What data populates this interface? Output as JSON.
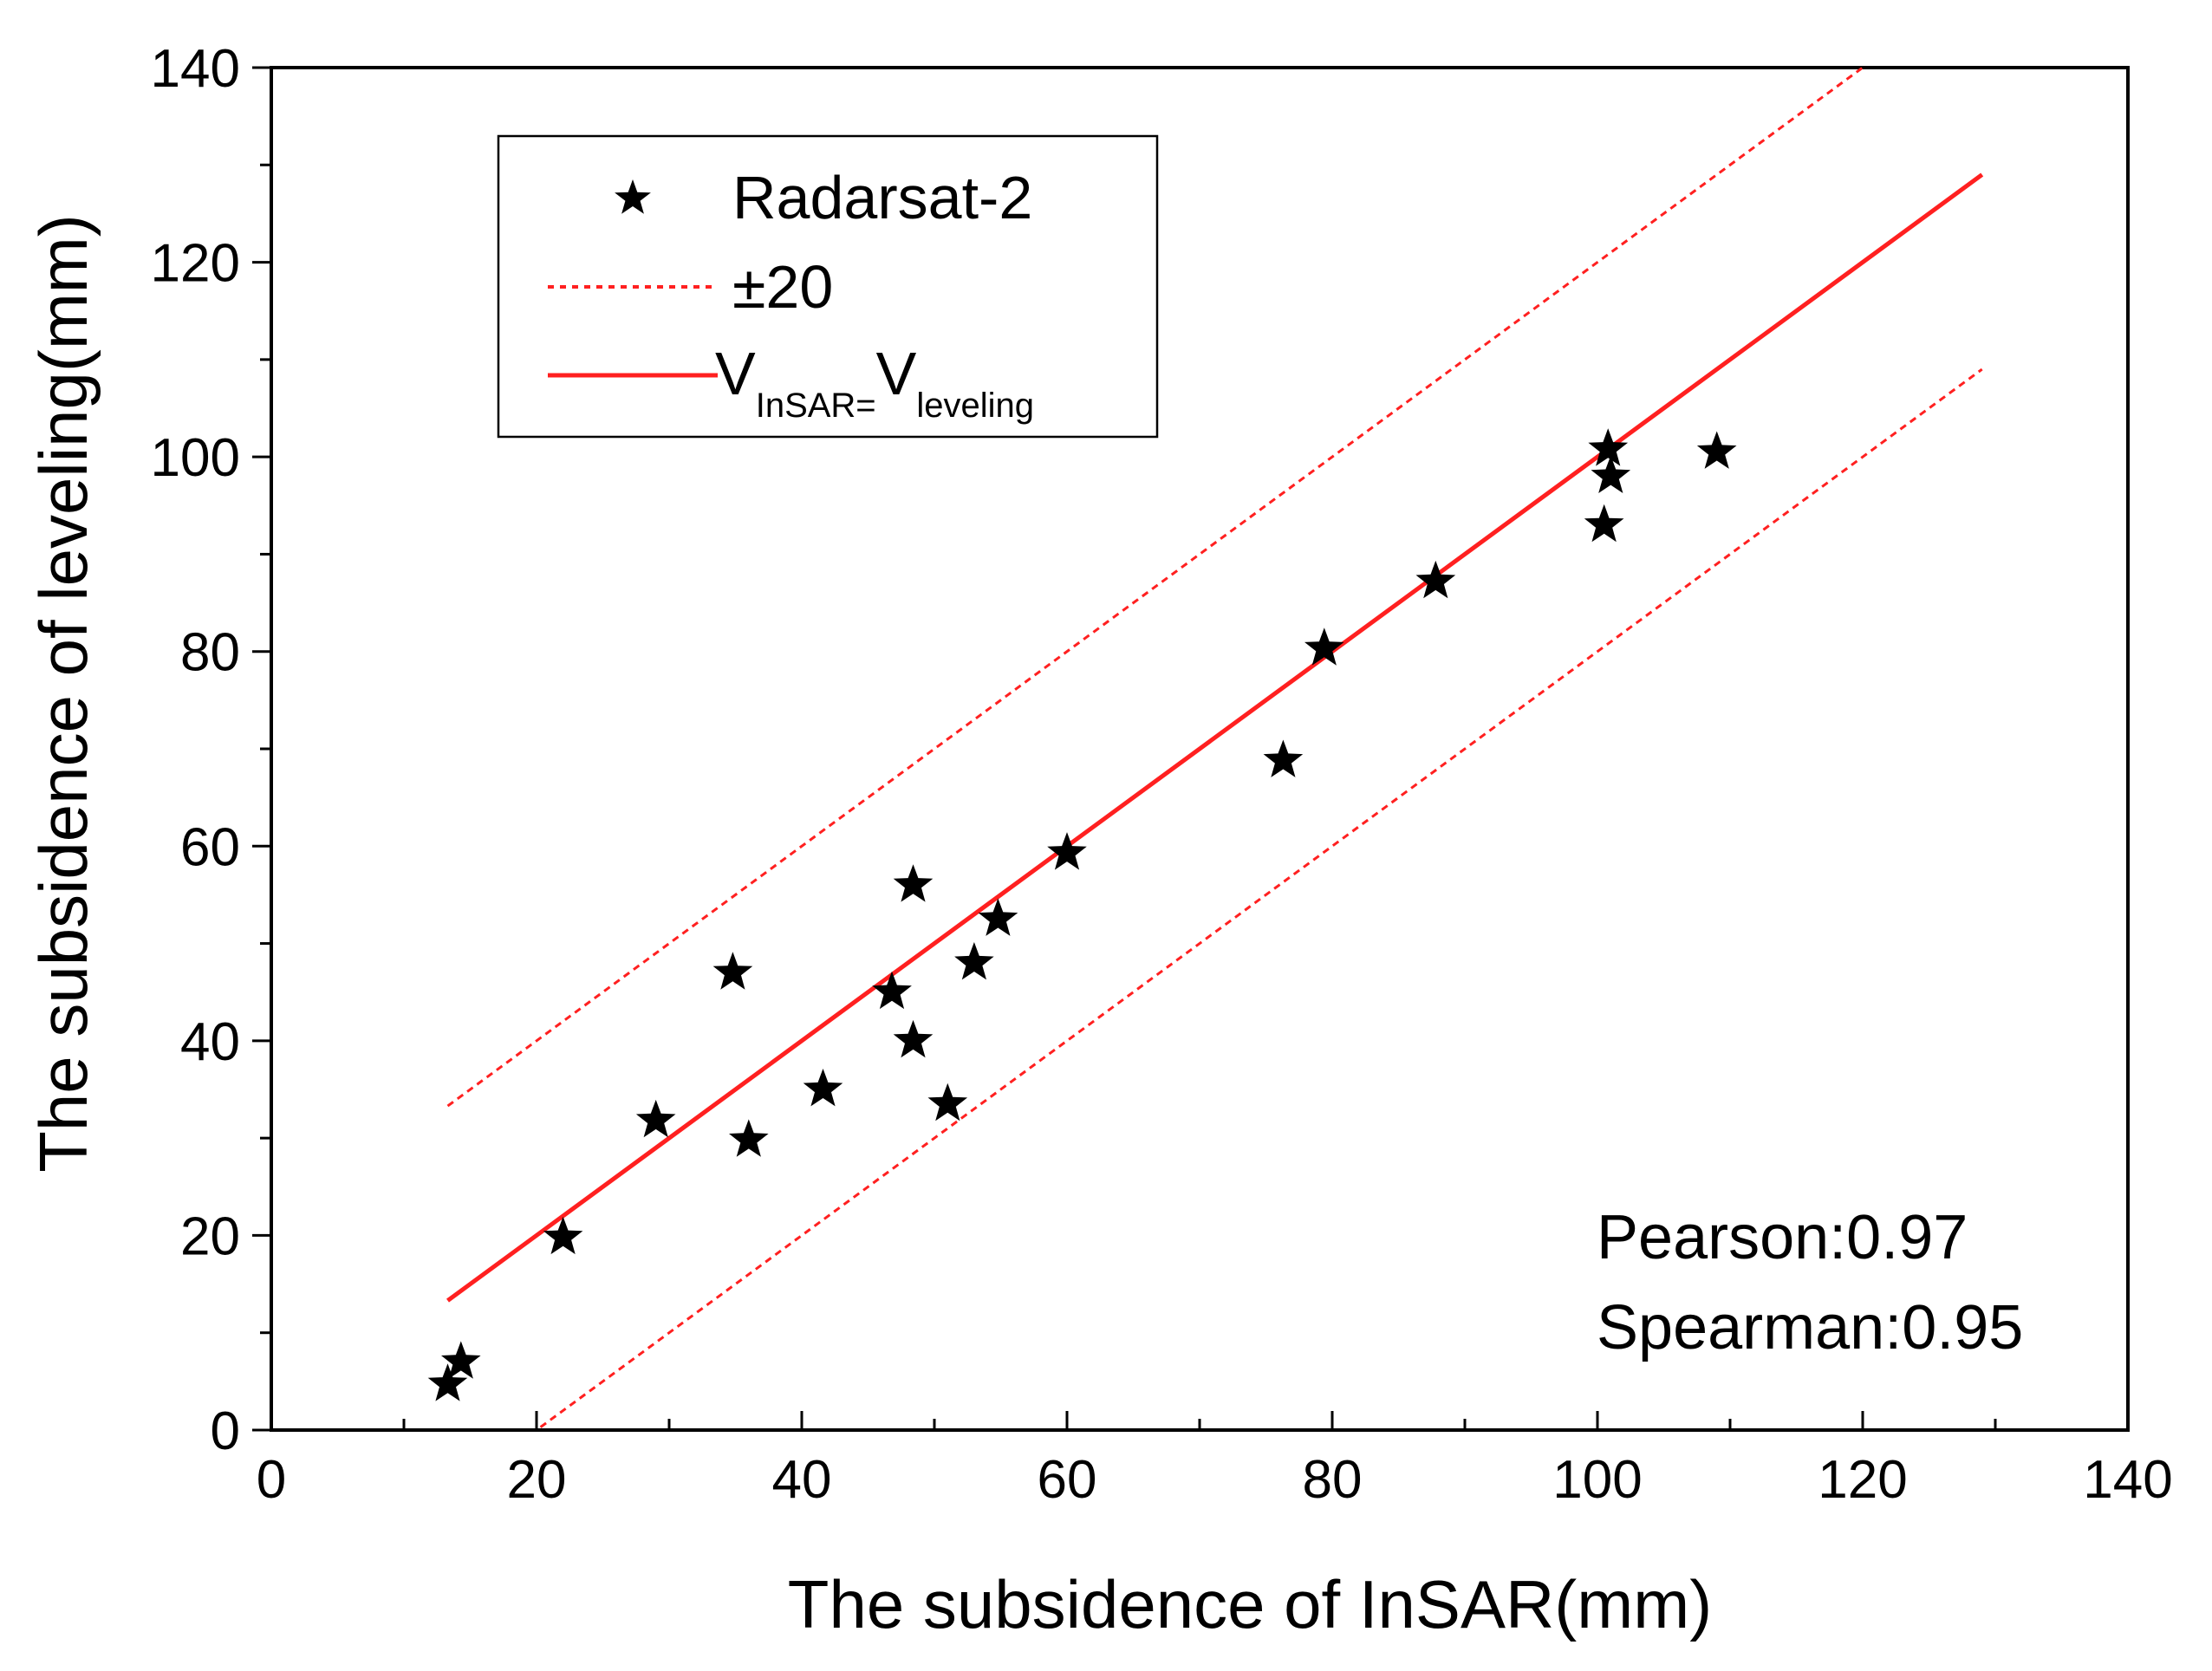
{
  "chart_data": {
    "type": "scatter",
    "title": "",
    "xlabel": "The subsidence of InSAR(mm)",
    "ylabel": "The subsidence of leveling(mm)",
    "xlim": [
      0,
      140
    ],
    "ylim": [
      0,
      140
    ],
    "x_major_ticks": [
      0,
      20,
      40,
      60,
      80,
      100,
      120,
      140
    ],
    "y_major_ticks": [
      0,
      20,
      40,
      60,
      80,
      100,
      120,
      140
    ],
    "x_tick_labels": [
      "0",
      "20",
      "40",
      "60",
      "80",
      "100",
      "120",
      "140"
    ],
    "y_tick_labels": [
      "0",
      "20",
      "40",
      "60",
      "80",
      "100",
      "120",
      "140"
    ],
    "minor_tick_step": 10,
    "grid": false,
    "legend_position": "top-left",
    "series": [
      {
        "name": "Radarsat-2",
        "kind": "scatter",
        "marker": "star",
        "color": "#000000",
        "x": [
          13.3,
          14.3,
          22.0,
          29.0,
          34.8,
          36.0,
          41.6,
          46.8,
          48.4,
          48.4,
          51.0,
          53.0,
          54.8,
          60.0,
          76.3,
          79.4,
          87.8,
          100.5,
          100.8,
          101.0,
          109.0
        ],
        "y": [
          4.7,
          7.0,
          19.8,
          31.8,
          47.0,
          29.8,
          35.0,
          45.0,
          56.0,
          40.0,
          33.5,
          48.0,
          52.5,
          59.3,
          68.8,
          80.3,
          87.2,
          93.0,
          100.8,
          98.0,
          100.5
        ]
      },
      {
        "name": "±20",
        "kind": "line",
        "style": "dotted",
        "color": "#ff2020",
        "segments": [
          {
            "x": [
              13.3,
              120.0
            ],
            "y": [
              33.3,
              140.0
            ]
          },
          {
            "x": [
              20.3,
              129.0
            ],
            "y": [
              0.3,
              109.0
            ]
          }
        ]
      },
      {
        "name": "VInSAR=Vleveling",
        "kind": "line",
        "style": "solid",
        "color": "#ff2020",
        "x": [
          13.3,
          129.0
        ],
        "y": [
          13.3,
          129.0
        ]
      }
    ],
    "legend": {
      "items": [
        {
          "label": "Radarsat-2",
          "symbol": "star"
        },
        {
          "label": "±20",
          "symbol": "dotted-line"
        },
        {
          "label_main": "V",
          "label_sub1": "InSAR=",
          "label_main2": "V",
          "label_sub2": "leveling",
          "symbol": "solid-line"
        }
      ]
    },
    "annotations": [
      {
        "text": "Pearson:0.97"
      },
      {
        "text": "Spearman:0.95"
      }
    ]
  }
}
